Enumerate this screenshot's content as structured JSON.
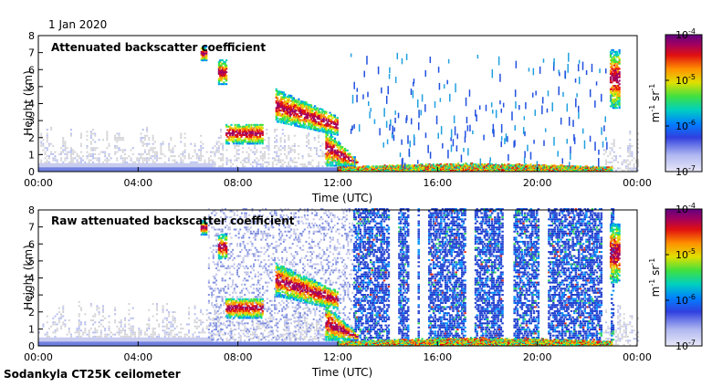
{
  "date_label": "1 Jan 2020",
  "instrument_label": "Sodankyla CT25K ceilometer",
  "chart_data": [
    {
      "type": "heatmap",
      "title": "Attenuated backscatter coefficient",
      "xlabel": "Time (UTC)",
      "ylabel": "Height (km)",
      "x_ticks": [
        "00:00",
        "04:00",
        "08:00",
        "12:00",
        "16:00",
        "20:00",
        "00:00"
      ],
      "y_ticks": [
        "0",
        "1",
        "2",
        "3",
        "4",
        "5",
        "6",
        "7",
        "8"
      ],
      "xlim_hours": [
        0,
        24
      ],
      "ylim_km": [
        0,
        8
      ],
      "colorbar": {
        "scale": "log",
        "ticks": [
          "10^-7",
          "10^-6",
          "10^-5",
          "10^-4"
        ],
        "tick_base": "10",
        "tick_exponents": [
          "-7",
          "-6",
          "-5",
          "-4"
        ],
        "label_main": "m",
        "label_exp1": "-1",
        "label_mid": " sr",
        "label_exp2": "-1",
        "range": [
          1e-07,
          0.0001
        ]
      },
      "features": {
        "boundary_layer_top_km": 0.3,
        "cloud_segments": [
          {
            "t0": 6.5,
            "t1": 6.7,
            "h0": 6.5,
            "h1": 7.3
          },
          {
            "t0": 7.2,
            "t1": 7.5,
            "h0": 5.1,
            "h1": 6.5
          },
          {
            "t0": 7.5,
            "t1": 9.0,
            "h0": 1.6,
            "h1": 2.8
          },
          {
            "t0": 9.5,
            "t1": 12.0,
            "h0": 2.9,
            "h1": 4.8
          },
          {
            "t0": 11.5,
            "t1": 12.8,
            "h0": 0.4,
            "h1": 2.4
          },
          {
            "t0": 22.9,
            "t1": 23.3,
            "h0": 3.7,
            "h1": 7.1
          }
        ]
      }
    },
    {
      "type": "heatmap",
      "title": "Raw attenuated backscatter coefficient",
      "xlabel": "Time (UTC)",
      "ylabel": "Height (km)",
      "x_ticks": [
        "00:00",
        "04:00",
        "08:00",
        "12:00",
        "16:00",
        "20:00",
        "00:00"
      ],
      "y_ticks": [
        "0",
        "1",
        "2",
        "3",
        "4",
        "5",
        "6",
        "7",
        "8"
      ],
      "xlim_hours": [
        0,
        24
      ],
      "ylim_km": [
        0,
        8
      ],
      "colorbar": {
        "scale": "log",
        "ticks": [
          "10^-7",
          "10^-6",
          "10^-5",
          "10^-4"
        ],
        "tick_base": "10",
        "tick_exponents": [
          "-7",
          "-6",
          "-5",
          "-4"
        ],
        "label_main": "m",
        "label_exp1": "-1",
        "label_mid": " sr",
        "label_exp2": "-1",
        "range": [
          1e-07,
          0.0001
        ]
      },
      "features": {
        "noise_starts_hour": 6.8,
        "dense_noise_starts_hour": 12.6,
        "gap_hours": [
          14.2,
          15.0,
          15.4,
          17.3,
          18.8,
          20.2,
          22.7
        ]
      }
    }
  ]
}
